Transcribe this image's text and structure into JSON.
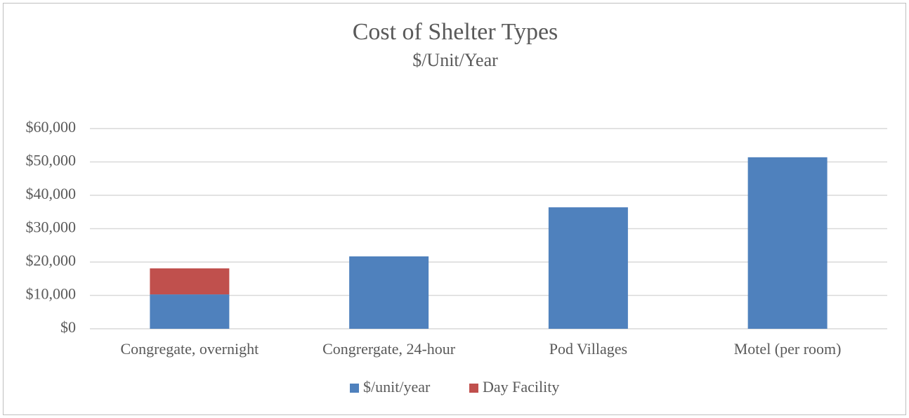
{
  "chart_data": {
    "type": "stacked-bar",
    "title": "Cost of Shelter Types",
    "subtitle": "$/Unit/Year",
    "categories": [
      "Congregate, overnight",
      "Congrergate, 24-hour",
      "Pod Villages",
      "Motel (per room)"
    ],
    "series": [
      {
        "name": "$/unit/year",
        "color": "#4f81bd",
        "values": [
          10300,
          21700,
          36400,
          51400
        ]
      },
      {
        "name": "Day Facility",
        "color": "#c0504d",
        "values": [
          7800,
          null,
          null,
          null
        ]
      }
    ],
    "ylim": [
      0,
      60000
    ],
    "yticks": [
      {
        "value": 0,
        "label": "$0"
      },
      {
        "value": 10000,
        "label": "$10,000"
      },
      {
        "value": 20000,
        "label": "$20,000"
      },
      {
        "value": 30000,
        "label": "$30,000"
      },
      {
        "value": 40000,
        "label": "$40,000"
      },
      {
        "value": 50000,
        "label": "$50,000"
      },
      {
        "value": 60000,
        "label": "$60,000"
      }
    ],
    "grid": true,
    "legend": "bottom"
  }
}
